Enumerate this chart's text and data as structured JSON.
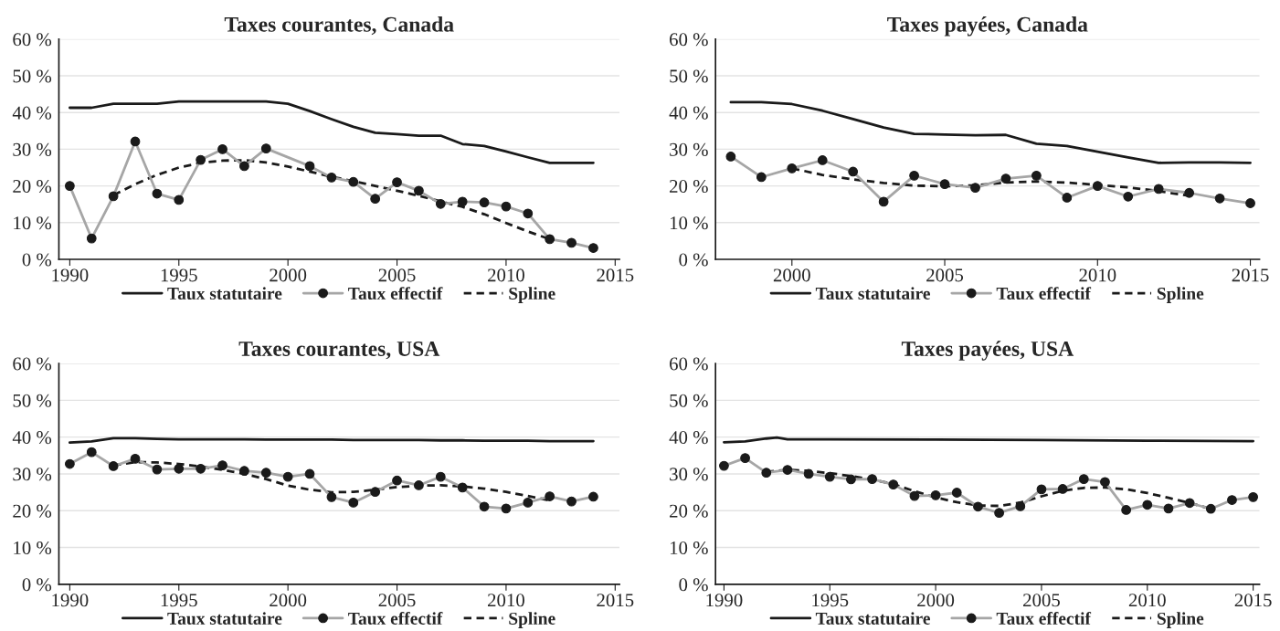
{
  "chart_data": [
    {
      "type": "line",
      "title": "Taxes courantes, Canada",
      "xlim": [
        1989.5,
        2015.2
      ],
      "xticks": [
        1990,
        1995,
        2000,
        2005,
        2010,
        2015
      ],
      "ylim": [
        0,
        60
      ],
      "yticks": [
        {
          "value": 0,
          "label": "0 %"
        },
        {
          "value": 10,
          "label": "10 %"
        },
        {
          "value": 20,
          "label": "20 %"
        },
        {
          "value": 30,
          "label": "30 %"
        },
        {
          "value": 40,
          "label": "40 %"
        },
        {
          "value": 50,
          "label": "50 %"
        },
        {
          "value": 60,
          "label": "60 %"
        }
      ],
      "grid": "y",
      "legend": "bottom",
      "series": [
        {
          "name": "Taux statutaire",
          "color": "#1a1a1a",
          "line_style": "solid",
          "marker": "none",
          "x": [
            1990,
            1991,
            1992,
            1993,
            1994,
            1995,
            1996,
            1997,
            1998,
            1999,
            2000,
            2001,
            2002,
            2003,
            2004,
            2005,
            2006,
            2007,
            2008,
            2009,
            2010,
            2011,
            2012,
            2013,
            2014
          ],
          "values": [
            41.3,
            41.3,
            42.4,
            42.4,
            42.4,
            43,
            43,
            43,
            43,
            43,
            42.4,
            40.4,
            38.2,
            36.1,
            34.5,
            34.1,
            33.7,
            33.7,
            31.4,
            30.9,
            29.4,
            27.8,
            26.3,
            26.3,
            26.3
          ]
        },
        {
          "name": "Taux effectif",
          "color": "#a6a6a6",
          "line_style": "solid",
          "marker": "circle",
          "x": [
            1990,
            1991,
            1992,
            1993,
            1994,
            1995,
            1996,
            1997,
            1998,
            1999,
            2001,
            2002,
            2003,
            2004,
            2005,
            2006,
            2007,
            2008,
            2009,
            2010,
            2011,
            2012,
            2013,
            2014
          ],
          "values": [
            20,
            5.7,
            17.2,
            32.1,
            17.9,
            16.2,
            27.1,
            30,
            25.4,
            30.2,
            25.4,
            22.3,
            21.1,
            16.5,
            21,
            18.7,
            15.1,
            15.7,
            15.5,
            14.4,
            12.5,
            5.5,
            4.5,
            3.1
          ]
        },
        {
          "name": "Spline",
          "color": "#1a1a1a",
          "line_style": "dashed",
          "marker": "none",
          "x": [
            1992,
            1993,
            1994,
            1995,
            1996,
            1997,
            1998,
            1999,
            2000,
            2001,
            2002,
            2003,
            2004,
            2005,
            2006,
            2007,
            2008,
            2009,
            2010,
            2011,
            2012
          ],
          "values": [
            17.5,
            20.5,
            23,
            25,
            26.3,
            26.9,
            27,
            26.4,
            25.3,
            23.9,
            22.5,
            21.3,
            20,
            18.7,
            17.3,
            15.8,
            14.3,
            12.3,
            9.9,
            7.6,
            5.5
          ]
        }
      ]
    },
    {
      "type": "line",
      "title": "Taxes payées, Canada",
      "xlim": [
        1997.5,
        2015.3
      ],
      "xticks": [
        2000,
        2005,
        2010,
        2015
      ],
      "ylim": [
        0,
        60
      ],
      "yticks": [
        {
          "value": 0,
          "label": "0 %"
        },
        {
          "value": 10,
          "label": "10 %"
        },
        {
          "value": 20,
          "label": "20 %"
        },
        {
          "value": 30,
          "label": "30 %"
        },
        {
          "value": 40,
          "label": "40 %"
        },
        {
          "value": 50,
          "label": "50 %"
        },
        {
          "value": 60,
          "label": "60 %"
        }
      ],
      "grid": "y",
      "legend": "bottom",
      "series": [
        {
          "name": "Taux statutaire",
          "color": "#1a1a1a",
          "line_style": "solid",
          "marker": "none",
          "x": [
            1998,
            1999,
            2000,
            2001,
            2002,
            2003,
            2004,
            2005,
            2006,
            2007,
            2008,
            2009,
            2010,
            2011,
            2012,
            2013,
            2014,
            2015
          ],
          "values": [
            42.8,
            42.8,
            42.3,
            40.5,
            38.2,
            35.9,
            34.2,
            34.0,
            33.8,
            33.9,
            31.5,
            30.9,
            29.3,
            27.8,
            26.3,
            26.4,
            26.4,
            26.3
          ]
        },
        {
          "name": "Taux effectif",
          "color": "#a6a6a6",
          "line_style": "solid",
          "marker": "circle",
          "x": [
            1998,
            1999,
            2000,
            2001,
            2002,
            2003,
            2004,
            2005,
            2006,
            2007,
            2008,
            2009,
            2010,
            2011,
            2012,
            2013,
            2014,
            2015
          ],
          "values": [
            28.0,
            22.4,
            24.8,
            27.0,
            23.9,
            15.7,
            22.8,
            20.5,
            19.5,
            22.0,
            22.8,
            16.8,
            20.0,
            17.1,
            19.2,
            18.1,
            16.6,
            15.3
          ]
        },
        {
          "name": "Spline",
          "color": "#1a1a1a",
          "line_style": "dashed",
          "marker": "none",
          "x": [
            2000,
            2001,
            2002,
            2003,
            2004,
            2005,
            2006,
            2007,
            2008,
            2009,
            2010,
            2011,
            2012,
            2013
          ],
          "values": [
            24.8,
            23.0,
            21.8,
            20.8,
            20.1,
            19.9,
            20.2,
            20.9,
            21.2,
            20.9,
            20.3,
            19.6,
            18.6,
            17.3
          ]
        }
      ]
    },
    {
      "type": "line",
      "title": "Taxes courantes, USA",
      "xlim": [
        1989.5,
        2015.2
      ],
      "xticks": [
        1990,
        1995,
        2000,
        2005,
        2010,
        2015
      ],
      "ylim": [
        0,
        60
      ],
      "yticks": [
        {
          "value": 0,
          "label": "0 %"
        },
        {
          "value": 10,
          "label": "10 %"
        },
        {
          "value": 20,
          "label": "20 %"
        },
        {
          "value": 30,
          "label": "30 %"
        },
        {
          "value": 40,
          "label": "40 %"
        },
        {
          "value": 50,
          "label": "50 %"
        },
        {
          "value": 60,
          "label": "60 %"
        }
      ],
      "grid": "y",
      "legend": "bottom",
      "series": [
        {
          "name": "Taux statutaire",
          "color": "#1a1a1a",
          "line_style": "solid",
          "marker": "none",
          "x": [
            1990,
            1991,
            1992,
            1993,
            1994,
            1995,
            1996,
            1997,
            1998,
            1999,
            2000,
            2001,
            2002,
            2003,
            2004,
            2005,
            2006,
            2007,
            2008,
            2009,
            2010,
            2011,
            2012,
            2013,
            2014
          ],
          "values": [
            38.5,
            38.8,
            39.7,
            39.7,
            39.5,
            39.4,
            39.4,
            39.4,
            39.4,
            39.3,
            39.3,
            39.3,
            39.3,
            39.2,
            39.2,
            39.2,
            39.2,
            39.1,
            39.1,
            39.0,
            39.0,
            39.0,
            38.9,
            38.9,
            38.9
          ]
        },
        {
          "name": "Taux effectif",
          "color": "#a6a6a6",
          "line_style": "solid",
          "marker": "circle",
          "x": [
            1990,
            1991,
            1992,
            1993,
            1994,
            1995,
            1996,
            1997,
            1998,
            1999,
            2000,
            2001,
            2002,
            2003,
            2004,
            2005,
            2006,
            2007,
            2008,
            2009,
            2010,
            2011,
            2012,
            2013,
            2014
          ],
          "values": [
            32.7,
            35.9,
            32.1,
            34.1,
            31.2,
            31.4,
            31.4,
            32.3,
            30.8,
            30.3,
            29.2,
            30.0,
            23.7,
            22.2,
            25.1,
            28.2,
            26.9,
            29.2,
            26.3,
            21.1,
            20.6,
            22.2,
            23.9,
            22.5,
            23.8
          ]
        },
        {
          "name": "Spline",
          "color": "#1a1a1a",
          "line_style": "dashed",
          "marker": "none",
          "x": [
            1992,
            1993,
            1994,
            1995,
            1996,
            1997,
            1998,
            1999,
            2000,
            2001,
            2002,
            2003,
            2004,
            2005,
            2006,
            2007,
            2008,
            2009,
            2010,
            2011,
            2012
          ],
          "values": [
            32.3,
            33.2,
            33.1,
            32.7,
            32.0,
            31.1,
            30.0,
            28.6,
            26.8,
            25.7,
            25.0,
            25.1,
            25.7,
            26.4,
            26.8,
            26.9,
            26.6,
            26.0,
            25.1,
            24.0,
            22.8
          ]
        }
      ]
    },
    {
      "type": "line",
      "title": "Taxes payées, USA",
      "xlim": [
        1989.6,
        2015.3
      ],
      "xticks": [
        1990,
        1995,
        2000,
        2005,
        2010,
        2015
      ],
      "ylim": [
        0,
        60
      ],
      "yticks": [
        {
          "value": 0,
          "label": "0 %"
        },
        {
          "value": 10,
          "label": "10 %"
        },
        {
          "value": 20,
          "label": "20 %"
        },
        {
          "value": 30,
          "label": "30 %"
        },
        {
          "value": 40,
          "label": "40 %"
        },
        {
          "value": 50,
          "label": "50 %"
        },
        {
          "value": 60,
          "label": "60 %"
        }
      ],
      "grid": "y",
      "legend": "bottom",
      "series": [
        {
          "name": "Taux statutaire",
          "color": "#1a1a1a",
          "line_style": "solid",
          "marker": "none",
          "x": [
            1990,
            1991,
            1992,
            1992.5,
            1993,
            1995,
            2000,
            2005,
            2010,
            2015
          ],
          "values": [
            38.6,
            38.8,
            39.6,
            39.9,
            39.4,
            39.4,
            39.3,
            39.2,
            39.0,
            38.9
          ]
        },
        {
          "name": "Taux effectif",
          "color": "#a6a6a6",
          "line_style": "solid",
          "marker": "circle",
          "x": [
            1990,
            1991,
            1992,
            1993,
            1994,
            1995,
            1996,
            1997,
            1998,
            1999,
            2000,
            2001,
            2002,
            2003,
            2004,
            2005,
            2006,
            2007,
            2008,
            2009,
            2010,
            2011,
            2012,
            2013,
            2014,
            2015
          ],
          "values": [
            32.2,
            34.3,
            30.3,
            31.1,
            30.0,
            29.2,
            28.5,
            28.6,
            27.1,
            24.0,
            24.2,
            24.9,
            21.1,
            19.4,
            21.2,
            25.8,
            25.9,
            28.6,
            27.8,
            20.2,
            21.6,
            20.6,
            22.1,
            20.5,
            22.9,
            23.7
          ]
        },
        {
          "name": "Spline",
          "color": "#1a1a1a",
          "line_style": "dashed",
          "marker": "none",
          "x": [
            1992,
            1993,
            1994,
            1995,
            1996,
            1997,
            1998,
            1999,
            2000,
            2001,
            2002,
            2003,
            2004,
            2005,
            2006,
            2007,
            2008,
            2009,
            2010,
            2011,
            2012,
            2013
          ],
          "values": [
            30.6,
            31.1,
            30.8,
            30.2,
            29.4,
            28.5,
            27.2,
            25.3,
            23.6,
            22.3,
            21.4,
            21.3,
            22.2,
            23.9,
            25.4,
            26.2,
            26.3,
            25.8,
            24.8,
            23.5,
            22.1,
            20.5
          ]
        }
      ]
    }
  ]
}
